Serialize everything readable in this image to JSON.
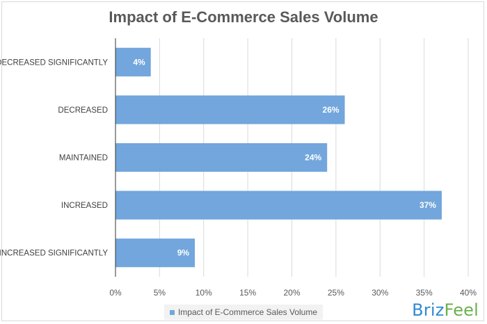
{
  "chart_data": {
    "type": "bar",
    "orientation": "horizontal",
    "title": "Impact of E-Commerce Sales Volume",
    "categories": [
      "DECREASED SIGNIFICANTLY",
      "DECREASED",
      "MAINTAINED",
      "INCREASED",
      "INCREASED SIGNIFICANTLY"
    ],
    "series": [
      {
        "name": "Impact of E-Commerce Sales Volume",
        "values": [
          4,
          26,
          24,
          37,
          9
        ],
        "labels": [
          "4%",
          "26%",
          "24%",
          "37%",
          "9%"
        ],
        "color": "#72a6dc"
      }
    ],
    "xlim": [
      0,
      40
    ],
    "xticks": [
      "0%",
      "5%",
      "10%",
      "15%",
      "20%",
      "25%",
      "30%",
      "35%",
      "40%"
    ],
    "grid": true,
    "legend": "bottom"
  },
  "branding": {
    "part1": "Briz",
    "part2": "Feel"
  },
  "colors": {
    "bar": "#72a6dc",
    "grid": "#d9d9d9",
    "axis_text": "#595959",
    "brand_blue": "#2f8ad1",
    "brand_green": "#6ab04c"
  }
}
